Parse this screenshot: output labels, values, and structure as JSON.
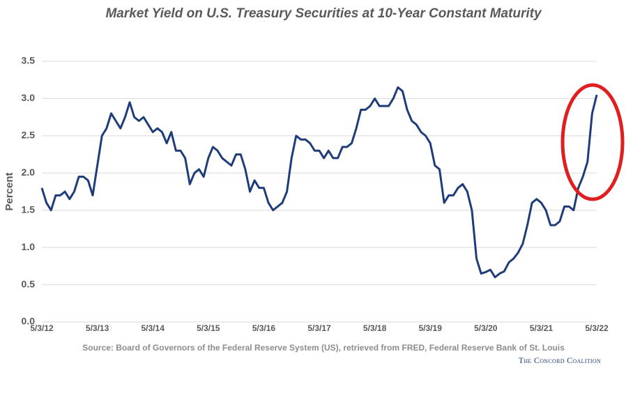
{
  "chart_data": {
    "type": "line",
    "title": "Market Yield on U.S. Treasury Securities at 10-Year Constant Maturity",
    "y_label": "Percent",
    "source": "Source: Board of Governors of the Federal Reserve System (US), retrieved from FRED, Federal Reserve Bank of St. Louis",
    "credit": "The Concord Coalition",
    "color": "#1f3c7a",
    "grid": true,
    "ylim": [
      0,
      3.5
    ],
    "yticks": [
      {
        "value": 0,
        "label": "0.0"
      },
      0.5,
      {
        "value": 1,
        "label": "1.0"
      },
      1.5,
      {
        "value": 2,
        "label": "2.0"
      },
      2.5,
      {
        "value": 3,
        "label": "3.0"
      },
      3.5
    ],
    "categories": [
      "5/3/12",
      null,
      null,
      null,
      null,
      null,
      null,
      null,
      null,
      null,
      null,
      null,
      "5/3/13",
      null,
      null,
      null,
      null,
      null,
      null,
      null,
      null,
      null,
      null,
      null,
      "5/3/14",
      null,
      null,
      null,
      null,
      null,
      null,
      null,
      null,
      null,
      null,
      null,
      "5/3/15",
      null,
      null,
      null,
      null,
      null,
      null,
      null,
      null,
      null,
      null,
      null,
      "5/3/16",
      null,
      null,
      null,
      null,
      null,
      null,
      null,
      null,
      null,
      null,
      null,
      "5/3/17",
      null,
      null,
      null,
      null,
      null,
      null,
      null,
      null,
      null,
      null,
      null,
      "5/3/18",
      null,
      null,
      null,
      null,
      null,
      null,
      null,
      null,
      null,
      null,
      null,
      "5/3/19",
      null,
      null,
      null,
      null,
      null,
      null,
      null,
      null,
      null,
      null,
      null,
      "5/3/20",
      null,
      null,
      null,
      null,
      null,
      null,
      null,
      null,
      null,
      null,
      null,
      "5/3/21",
      null,
      null,
      null,
      null,
      null,
      null,
      null,
      null,
      null,
      null,
      null,
      "5/3/22"
    ],
    "values": [
      1.8,
      1.6,
      1.5,
      1.7,
      1.7,
      1.75,
      1.65,
      1.75,
      1.95,
      1.95,
      1.9,
      1.7,
      2.1,
      2.5,
      2.6,
      2.8,
      2.7,
      2.6,
      2.75,
      2.95,
      2.75,
      2.7,
      2.75,
      2.65,
      2.55,
      2.6,
      2.55,
      2.4,
      2.55,
      2.3,
      2.3,
      2.2,
      1.85,
      2.0,
      2.05,
      1.95,
      2.2,
      2.35,
      2.3,
      2.2,
      2.15,
      2.1,
      2.25,
      2.25,
      2.05,
      1.75,
      1.9,
      1.8,
      1.8,
      1.6,
      1.5,
      1.55,
      1.6,
      1.75,
      2.2,
      2.5,
      2.45,
      2.45,
      2.4,
      2.3,
      2.3,
      2.2,
      2.3,
      2.2,
      2.2,
      2.35,
      2.35,
      2.4,
      2.6,
      2.85,
      2.85,
      2.9,
      3.0,
      2.9,
      2.9,
      2.9,
      3.0,
      3.15,
      3.1,
      2.85,
      2.7,
      2.65,
      2.55,
      2.5,
      2.4,
      2.1,
      2.05,
      1.6,
      1.7,
      1.7,
      1.8,
      1.85,
      1.75,
      1.5,
      0.85,
      0.65,
      0.67,
      0.7,
      0.6,
      0.65,
      0.68,
      0.8,
      0.85,
      0.93,
      1.05,
      1.3,
      1.6,
      1.65,
      1.6,
      1.5,
      1.3,
      1.3,
      1.35,
      1.55,
      1.55,
      1.5,
      1.8,
      1.95,
      2.15,
      2.8,
      3.05
    ]
  }
}
